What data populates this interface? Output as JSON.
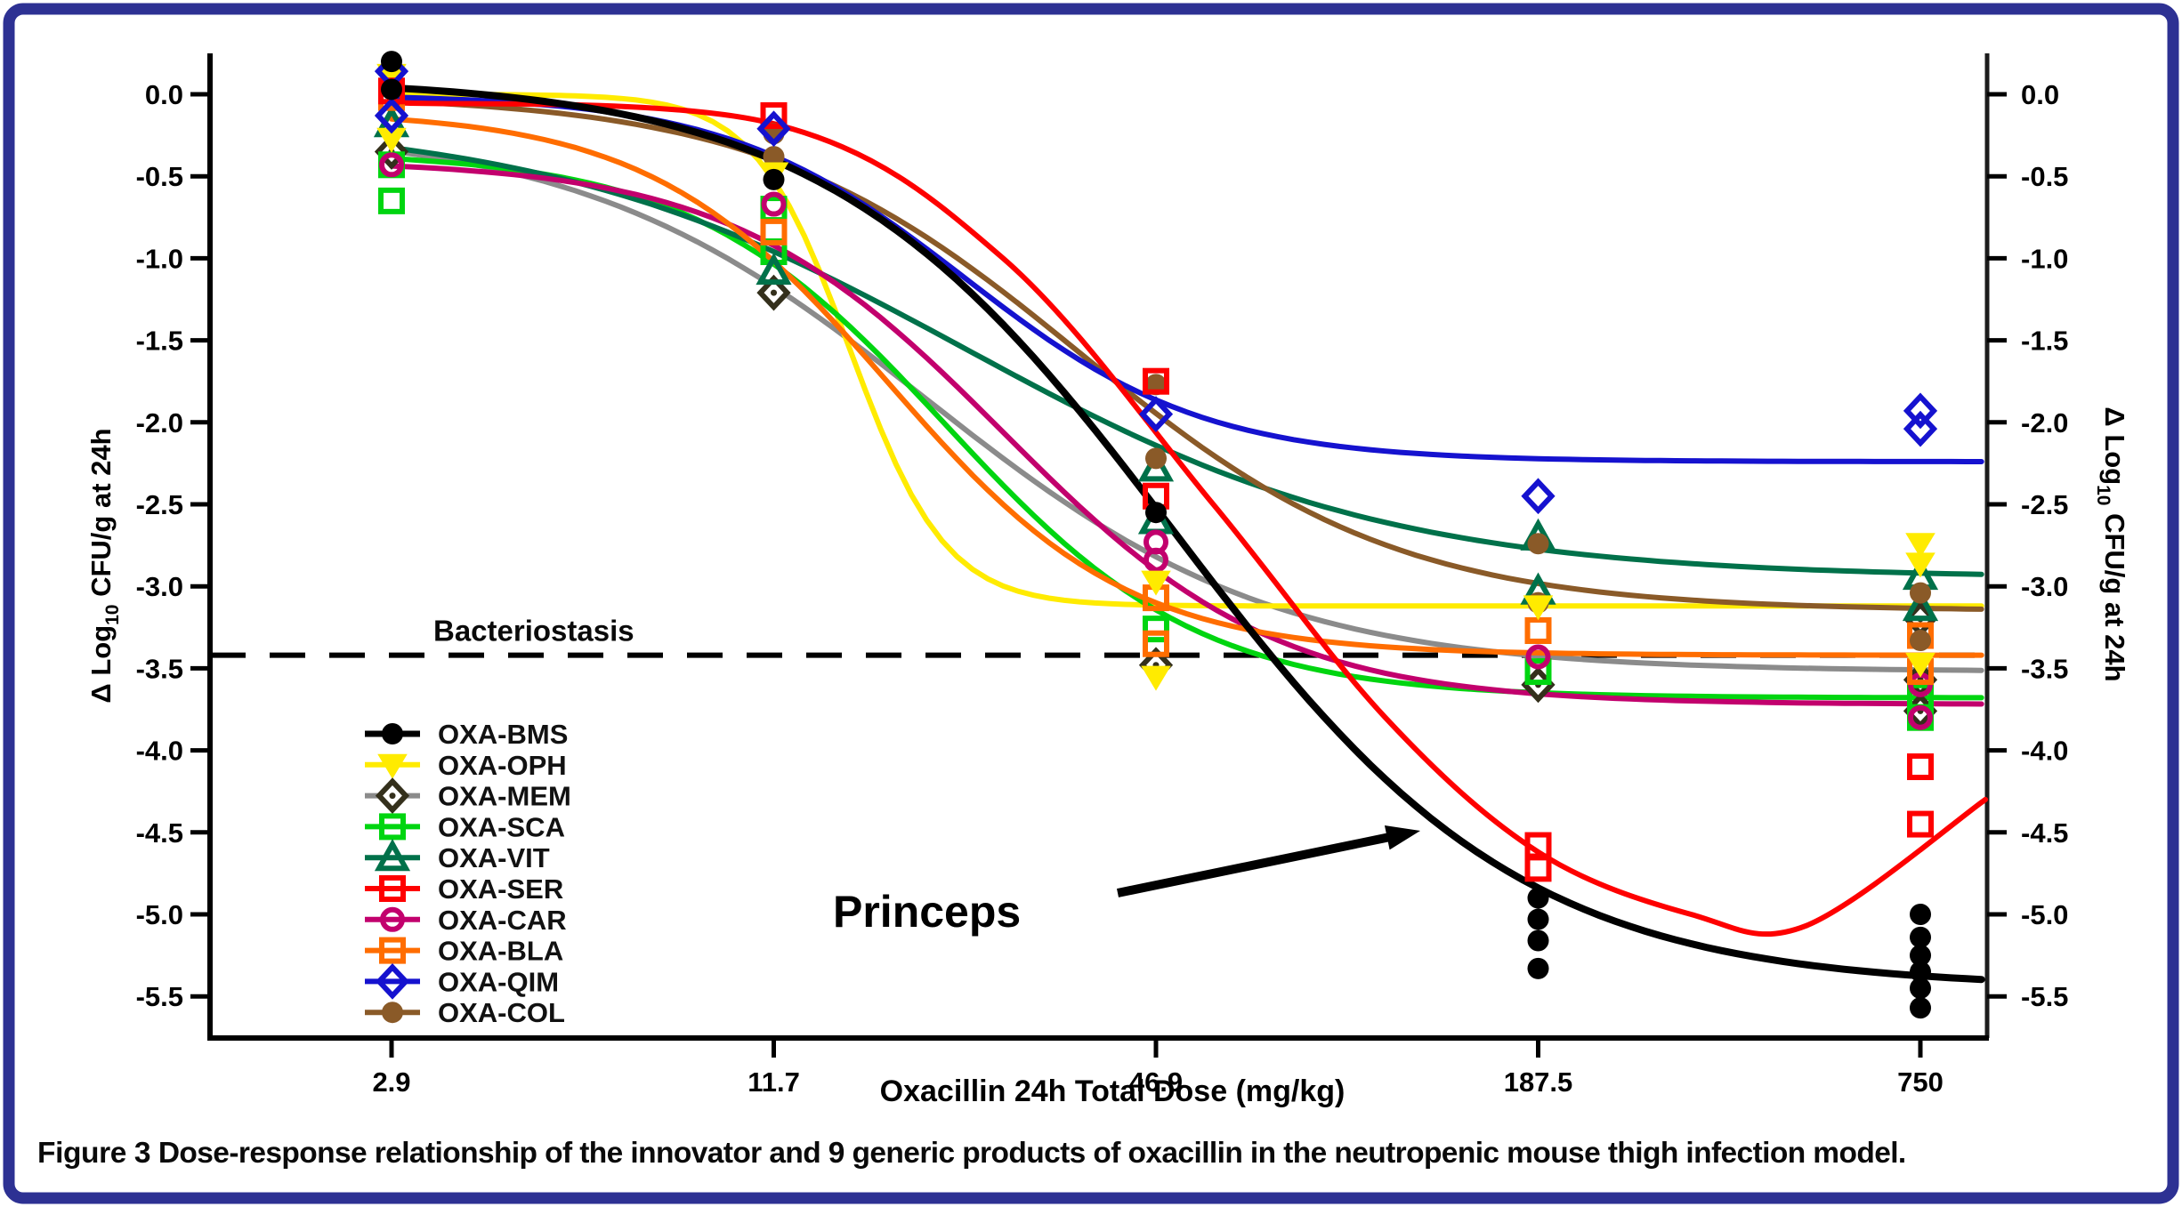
{
  "figure": {
    "caption_bold": "Figure 3",
    "caption_rest": " Dose-response relationship of the innovator and 9 generic products of oxacillin in the neutropenic mouse thigh infection model.",
    "border_color": "#2d3193"
  },
  "chart_data": {
    "type": "scatter",
    "subtype": "dose-response points with sigmoid fit curves, log-scaled x axis",
    "x_axis": {
      "label": "Oxacillin 24h Total Dose (mg/kg)",
      "scale": "log (4-fold dilutions, equally spaced ticks)",
      "tick_labels": [
        "2.9",
        "11.7",
        "46.9",
        "187.5",
        "750"
      ],
      "tick_values": [
        2.9,
        11.7,
        46.9,
        187.5,
        750
      ]
    },
    "y_axis": {
      "label_main": "Δ Log",
      "label_sub": "10",
      "label_rest": " CFU/g at 24h",
      "tick_step": -0.5,
      "tick_min": -5.5,
      "tick_max": 0.0,
      "range": [
        -5.75,
        0.35
      ],
      "mirrored_right_axis": true,
      "grid": false
    },
    "bacteriostasis_line": {
      "label": "Bacteriostasis",
      "y": -3.42,
      "style": "dashed black"
    },
    "annotation": {
      "label": "Princeps",
      "points_to": "OXA-BMS fitted curve"
    },
    "legend_position": "inside lower-left",
    "series": [
      {
        "name": "OXA-BMS",
        "color": "#000000",
        "marker": "circle-filled",
        "line_width": 8,
        "curve": {
          "type": "logistic",
          "top": 0.1,
          "bottom": -5.45,
          "mid": 2.05,
          "slope": 2.2
        },
        "points_by_dose": [
          [
            0.2,
            0.03
          ],
          [
            -0.52
          ],
          [
            -2.55
          ],
          [
            -4.9,
            -5.03,
            -5.16,
            -5.33
          ],
          [
            -5.0,
            -5.14,
            -5.25,
            -5.35,
            -5.45,
            -5.57
          ]
        ]
      },
      {
        "name": "OXA-OPH",
        "color": "#ffeb00",
        "marker": "triangle-down-filled",
        "line_width": 6,
        "curve": {
          "type": "logistic",
          "top": 0.0,
          "bottom": -3.12,
          "mid": 1.2,
          "slope": 8.0
        },
        "points_by_dose": [
          [
            0.12,
            -0.27
          ],
          [
            -0.48
          ],
          [
            -2.97,
            -3.55
          ],
          [
            -3.12
          ],
          [
            -2.74,
            -2.86,
            -3.47
          ]
        ]
      },
      {
        "name": "OXA-MEM",
        "color": "#34301c",
        "line_color": "#8b8b8b",
        "marker": "diamond-open-dot",
        "line_width": 6,
        "curve": {
          "type": "logistic",
          "top": -0.2,
          "bottom": -3.52,
          "mid": 1.4,
          "slope": 2.2
        },
        "points_by_dose": [
          [
            -0.35
          ],
          [
            -1.21
          ],
          [
            -3.48
          ],
          [
            -3.6
          ],
          [
            -3.2,
            -3.57,
            -3.76
          ]
        ]
      },
      {
        "name": "OXA-SCA",
        "color": "#00d510",
        "marker": "square-open",
        "line_width": 6,
        "curve": {
          "type": "logistic",
          "top": -0.35,
          "bottom": -3.68,
          "mid": 1.45,
          "slope": 3.0
        },
        "points_by_dose": [
          [
            -0.43,
            -0.65
          ],
          [
            -0.7,
            -0.96
          ],
          [
            -3.26
          ],
          [
            -3.27,
            -3.52
          ],
          [
            -3.67,
            -3.8
          ]
        ]
      },
      {
        "name": "OXA-VIT",
        "color": "#00714a",
        "marker": "triangle-up-open",
        "line_width": 6,
        "curve": {
          "type": "logistic",
          "top": -0.15,
          "bottom": -2.95,
          "mid": 1.5,
          "slope": 1.8
        },
        "points_by_dose": [
          [
            -0.18
          ],
          [
            -1.08
          ],
          [
            -2.28,
            -2.6
          ],
          [
            -2.7,
            -3.03
          ],
          [
            -2.94,
            -3.13
          ]
        ]
      },
      {
        "name": "OXA-SER",
        "color": "#fe0000",
        "marker": "square-open",
        "line_width": 6,
        "curve": {
          "type": "spline",
          "pts": [
            [
              0,
              -0.05
            ],
            [
              1,
              -0.18
            ],
            [
              1.6,
              -1.0
            ],
            [
              2.15,
              -2.5
            ],
            [
              2.6,
              -3.8
            ],
            [
              3.0,
              -4.62
            ],
            [
              3.4,
              -5.0
            ],
            [
              3.7,
              -5.07
            ],
            [
              4.17,
              -4.3
            ]
          ]
        },
        "points_by_dose": [
          [
            0.02
          ],
          [
            -0.13
          ],
          [
            -1.75,
            -2.45
          ],
          [
            -4.58,
            -4.72
          ],
          [
            -4.1,
            -4.45
          ]
        ]
      },
      {
        "name": "OXA-CAR",
        "color": "#c2006d",
        "marker": "circle-open",
        "line_width": 6,
        "curve": {
          "type": "logistic",
          "top": -0.4,
          "bottom": -3.72,
          "mid": 1.6,
          "slope": 2.8
        },
        "points_by_dose": [
          [
            -0.43
          ],
          [
            -0.67
          ],
          [
            -2.73,
            -2.84
          ],
          [
            -3.43
          ],
          [
            -3.6,
            -3.8
          ]
        ]
      },
      {
        "name": "OXA-BLA",
        "color": "#ff6d00",
        "marker": "square-open",
        "line_width": 6,
        "curve": {
          "type": "logistic",
          "top": -0.1,
          "bottom": -3.42,
          "mid": 1.3,
          "slope": 3.2
        },
        "points_by_dose": [
          [
            -0.02
          ],
          [
            -0.84
          ],
          [
            -3.07,
            -3.35
          ],
          [
            -3.27
          ],
          [
            -3.3,
            -3.52
          ]
        ]
      },
      {
        "name": "OXA-QIM",
        "color": "#1512cf",
        "marker": "diamond-open",
        "line_width": 6,
        "curve": {
          "type": "logistic",
          "top": 0.0,
          "bottom": -2.24,
          "mid": 1.5,
          "slope": 3.2
        },
        "points_by_dose": [
          [
            0.14,
            -0.13
          ],
          [
            -0.21
          ],
          [
            -1.95
          ],
          [
            -2.45
          ],
          [
            -1.93,
            -2.04
          ]
        ]
      },
      {
        "name": "OXA-COL",
        "color": "#8a5a28",
        "marker": "circle-filled",
        "line_width": 6,
        "curve": {
          "type": "logistic",
          "top": 0.0,
          "bottom": -3.15,
          "mid": 1.8,
          "slope": 2.4
        },
        "points_by_dose": [
          [
            0.03
          ],
          [
            -0.24,
            -0.38
          ],
          [
            -1.77,
            -2.22
          ],
          [
            -2.74,
            -3.1
          ],
          [
            -3.04,
            -3.33
          ]
        ]
      }
    ]
  }
}
